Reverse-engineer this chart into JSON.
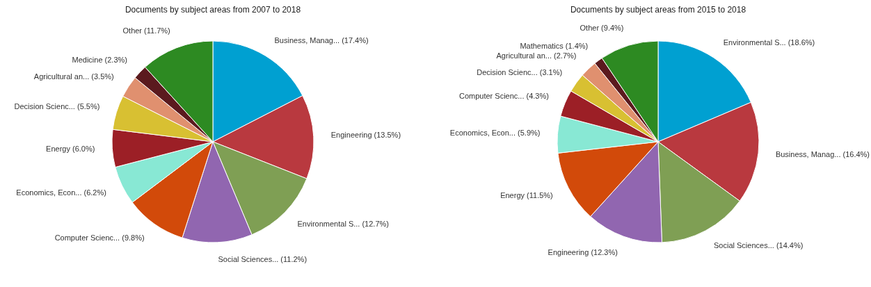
{
  "chart_data": [
    {
      "type": "pie",
      "title": "Documents by subject areas from 2007 to 2018",
      "categories": [
        "Business, Manag... (17.4%)",
        "Engineering (13.5%)",
        "Environmental S... (12.7%)",
        "Social Sciences... (11.2%)",
        "Computer Scienc... (9.8%)",
        "Economics, Econ... (6.2%)",
        "Energy (6.0%)",
        "Decision Scienc... (5.5%)",
        "Agricultural an... (3.5%)",
        "Medicine (2.3%)",
        "Other (11.7%)"
      ],
      "values": [
        17.4,
        13.5,
        12.7,
        11.2,
        9.8,
        6.2,
        6.0,
        5.5,
        3.5,
        2.3,
        11.7
      ],
      "colors": [
        "#00a0d1",
        "#b9393f",
        "#7f9f54",
        "#9166b0",
        "#d24a0a",
        "#88e8d4",
        "#9c1f26",
        "#d8c032",
        "#e0906f",
        "#5b1a1e",
        "#2d8a22"
      ]
    },
    {
      "type": "pie",
      "title": "Documents by subject areas from 2015 to 2018",
      "categories": [
        "Environmental S... (18.6%)",
        "Business, Manag... (16.4%)",
        "Social Sciences... (14.4%)",
        "Engineering (12.3%)",
        "Energy (11.5%)",
        "Economics, Econ... (5.9%)",
        "Computer Scienc... (4.3%)",
        "Decision Scienc... (3.1%)",
        "Agricultural an... (2.7%)",
        "Mathematics (1.4%)",
        "Other (9.4%)"
      ],
      "values": [
        18.6,
        16.4,
        14.4,
        12.3,
        11.5,
        5.9,
        4.3,
        3.1,
        2.7,
        1.4,
        9.4
      ],
      "colors": [
        "#00a0d1",
        "#b9393f",
        "#7f9f54",
        "#9166b0",
        "#d24a0a",
        "#88e8d4",
        "#9c1f26",
        "#d8c032",
        "#e0906f",
        "#5b1a1e",
        "#2d8a22"
      ]
    }
  ]
}
